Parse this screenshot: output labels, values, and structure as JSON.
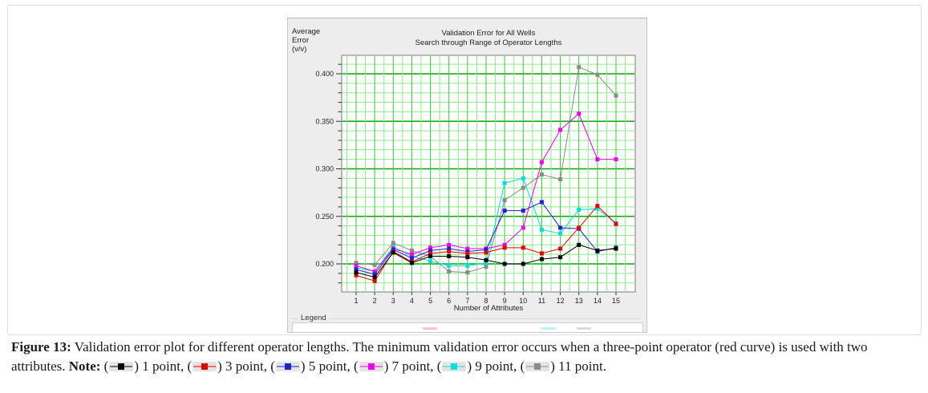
{
  "figure": {
    "caption": {
      "label": "Figure 13:",
      "line1": "Validation error plot for different operator lengths. The minimum validation error occurs when a three-point operator (red curve) is used with two",
      "line2_prefix": "attributes.",
      "note_label": "Note:",
      "paren_open": "(",
      "paren_close": ")",
      "item_separator": ", ",
      "terminator": ".",
      "items": [
        {
          "marker_color": "#000000",
          "label": "1 point"
        },
        {
          "marker_color": "#e00000",
          "label": "3 point"
        },
        {
          "marker_color": "#2222cc",
          "label": "5 point"
        },
        {
          "marker_color": "#ee00ee",
          "label": "7 point"
        },
        {
          "marker_color": "#00dddd",
          "label": "9 point"
        },
        {
          "marker_color": "#8a8a8a",
          "label": "11 point"
        }
      ]
    }
  },
  "chart_panel": {
    "y_axis_label": [
      "Average",
      "Error",
      "(v/v)"
    ],
    "title_line1": "Validation Error for All Wells",
    "title_line2": "Search through Range of Operator Lengths",
    "x_axis_label": "Number of Attributes",
    "legend_label": "Legend",
    "legend_preview_marks": [
      {
        "color": "#ff9999",
        "x": 162
      },
      {
        "color": "#8ae8e8",
        "x": 310
      },
      {
        "color": "#bbbbbb",
        "x": 354
      }
    ]
  },
  "chart_data": {
    "type": "line",
    "title": "Validation Error for All Wells — Search through Range of Operator Lengths",
    "xlabel": "Number of Attributes",
    "ylabel": "Average Error (v/v)",
    "x": [
      1,
      2,
      3,
      4,
      5,
      6,
      7,
      8,
      9,
      10,
      11,
      12,
      13,
      14,
      15
    ],
    "x_tick_labels": [
      "1",
      "2",
      "3",
      "4",
      "5",
      "6",
      "7",
      "8",
      "9",
      "10",
      "11",
      "12",
      "13",
      "14",
      "15"
    ],
    "y_ticks_major": [
      "0.200",
      "0.250",
      "0.300",
      "0.350",
      "0.400"
    ],
    "ylim": [
      0.1705,
      0.4195
    ],
    "xlim": [
      0.2,
      16.0
    ],
    "grid": {
      "minor_step_y": 0.01,
      "major_step_y": 0.05,
      "minor_step_x": 0.5,
      "major_step_x": 1,
      "minor_color": "#8ee88e",
      "major_color": "#00a800",
      "vertical_major_color": "#3cc43c"
    },
    "legend_position": "bottom",
    "series": [
      {
        "name": "1 point",
        "color": "#000000",
        "values": [
          0.191,
          0.186,
          0.212,
          0.201,
          0.208,
          0.208,
          0.207,
          0.204,
          0.2,
          0.2,
          0.205,
          0.207,
          0.22,
          0.214,
          0.216
        ]
      },
      {
        "name": "3 point",
        "color": "#e00000",
        "values": [
          0.188,
          0.182,
          0.213,
          0.202,
          0.211,
          0.213,
          0.211,
          0.212,
          0.217,
          0.217,
          0.211,
          0.216,
          0.238,
          0.261,
          0.242
        ]
      },
      {
        "name": "5 point",
        "color": "#2222cc",
        "values": [
          0.194,
          0.189,
          0.215,
          0.206,
          0.214,
          0.216,
          0.213,
          0.215,
          0.256,
          0.256,
          0.265,
          0.238,
          0.237,
          0.213,
          0.217
        ]
      },
      {
        "name": "7 point",
        "color": "#ee00ee",
        "values": [
          0.198,
          0.192,
          0.216,
          0.21,
          0.217,
          0.22,
          0.216,
          0.216,
          0.22,
          0.238,
          0.307,
          0.341,
          0.358,
          0.31,
          0.31
        ]
      },
      {
        "name": "9 point",
        "color": "#00dddd",
        "values": [
          0.196,
          0.192,
          0.218,
          0.208,
          0.203,
          0.198,
          0.198,
          0.201,
          0.285,
          0.29,
          0.236,
          0.232,
          0.257,
          0.258,
          0.243
        ]
      },
      {
        "name": "11 point",
        "color": "#8a8a8a",
        "values": [
          0.201,
          0.199,
          0.222,
          0.214,
          0.208,
          0.192,
          0.191,
          0.197,
          0.267,
          0.28,
          0.294,
          0.289,
          0.407,
          0.399,
          0.377
        ]
      }
    ]
  }
}
